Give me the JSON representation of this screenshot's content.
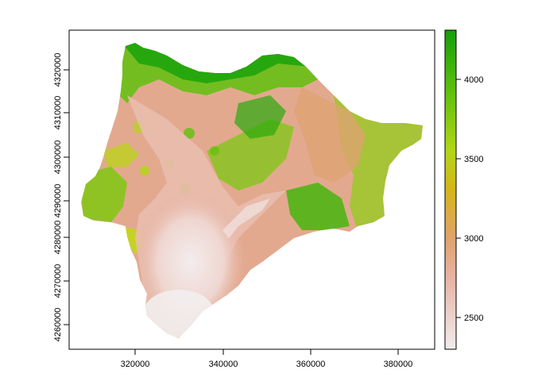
{
  "map": {
    "x_ticks": [
      "320000",
      "340000",
      "360000",
      "380000"
    ],
    "y_ticks": [
      "4260000",
      "4270000",
      "4280000",
      "4290000",
      "4300000",
      "4310000",
      "4320000"
    ]
  },
  "legend": {
    "ticks": [
      "2500",
      "3000",
      "3500",
      "4000"
    ],
    "colors": [
      "#f1ecec",
      "#e8b4a6",
      "#dfa36a",
      "#d6b519",
      "#b3d617",
      "#62c10d",
      "#149e0a"
    ]
  }
}
